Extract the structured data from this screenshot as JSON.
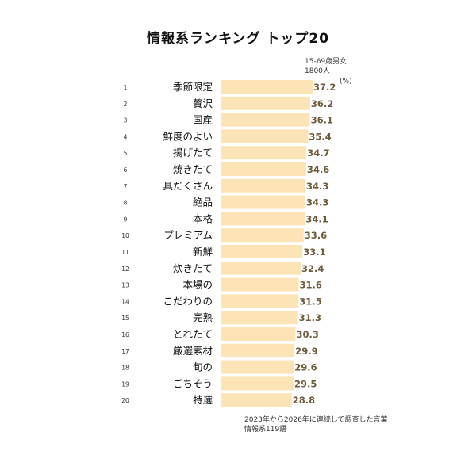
{
  "chart_data": {
    "type": "bar",
    "orientation": "horizontal",
    "title": "情報系ランキング トップ20",
    "sample_note": [
      "15-69歳男女",
      "1800人"
    ],
    "unit": "(%)",
    "footnote": [
      "2023年から2026年に連続して調査した言葉",
      "情報系119語"
    ],
    "categories": [
      "季節限定",
      "贅沢",
      "国産",
      "鮮度のよい",
      "揚げたて",
      "焼きたて",
      "具だくさん",
      "絶品",
      "本格",
      "プレミアム",
      "新鮮",
      "炊きたて",
      "本場の",
      "こだわりの",
      "完熟",
      "とれたて",
      "厳選素材",
      "旬の",
      "ごちそう",
      "特選"
    ],
    "ranks": [
      "1",
      "2",
      "3",
      "4",
      "5",
      "6",
      "7",
      "8",
      "9",
      "10",
      "11",
      "12",
      "13",
      "14",
      "15",
      "16",
      "17",
      "18",
      "19",
      "20"
    ],
    "values": [
      37.2,
      36.2,
      36.1,
      35.4,
      34.7,
      34.6,
      34.3,
      34.3,
      34.1,
      33.6,
      33.1,
      32.4,
      31.6,
      31.5,
      31.3,
      30.3,
      29.9,
      29.6,
      29.5,
      28.8
    ],
    "value_labels": [
      "37.2",
      "36.2",
      "36.1",
      "35.4",
      "34.7",
      "34.6",
      "34.3",
      "34.3",
      "34.1",
      "33.6",
      "33.1",
      "32.4",
      "31.6",
      "31.5",
      "31.3",
      "30.3",
      "29.9",
      "29.6",
      "29.5",
      "28.8"
    ],
    "xlim": [
      0,
      37.2
    ],
    "grid": false,
    "colors": {
      "bar": "#fde4b6",
      "value_text": "#6e5a3a"
    }
  }
}
